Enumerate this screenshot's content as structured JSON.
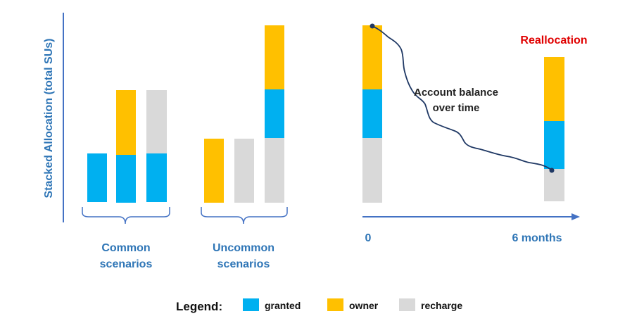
{
  "colors": {
    "granted": "#00B0F0",
    "owner": "#FFC000",
    "recharge": "#D9D9D9",
    "accent_blue": "#2E75B6",
    "axis_blue": "#4472C4",
    "reallocation_red": "#E00000",
    "balance_line": "#1F3864"
  },
  "y_axis_label": "Stacked Allocation (total SUs)",
  "groups": [
    {
      "label_line1": "Common",
      "label_line2": "scenarios"
    },
    {
      "label_line1": "Uncommon",
      "label_line2": "scenarios"
    }
  ],
  "timeline": {
    "start_label": "0",
    "end_label": "6 months",
    "balance_label_line1": "Account balance",
    "balance_label_line2": "over time",
    "reallocation_label": "Reallocation"
  },
  "legend": {
    "title": "Legend:",
    "items": [
      {
        "key": "granted",
        "label": "granted"
      },
      {
        "key": "owner",
        "label": "owner"
      },
      {
        "key": "recharge",
        "label": "recharge"
      }
    ]
  }
}
